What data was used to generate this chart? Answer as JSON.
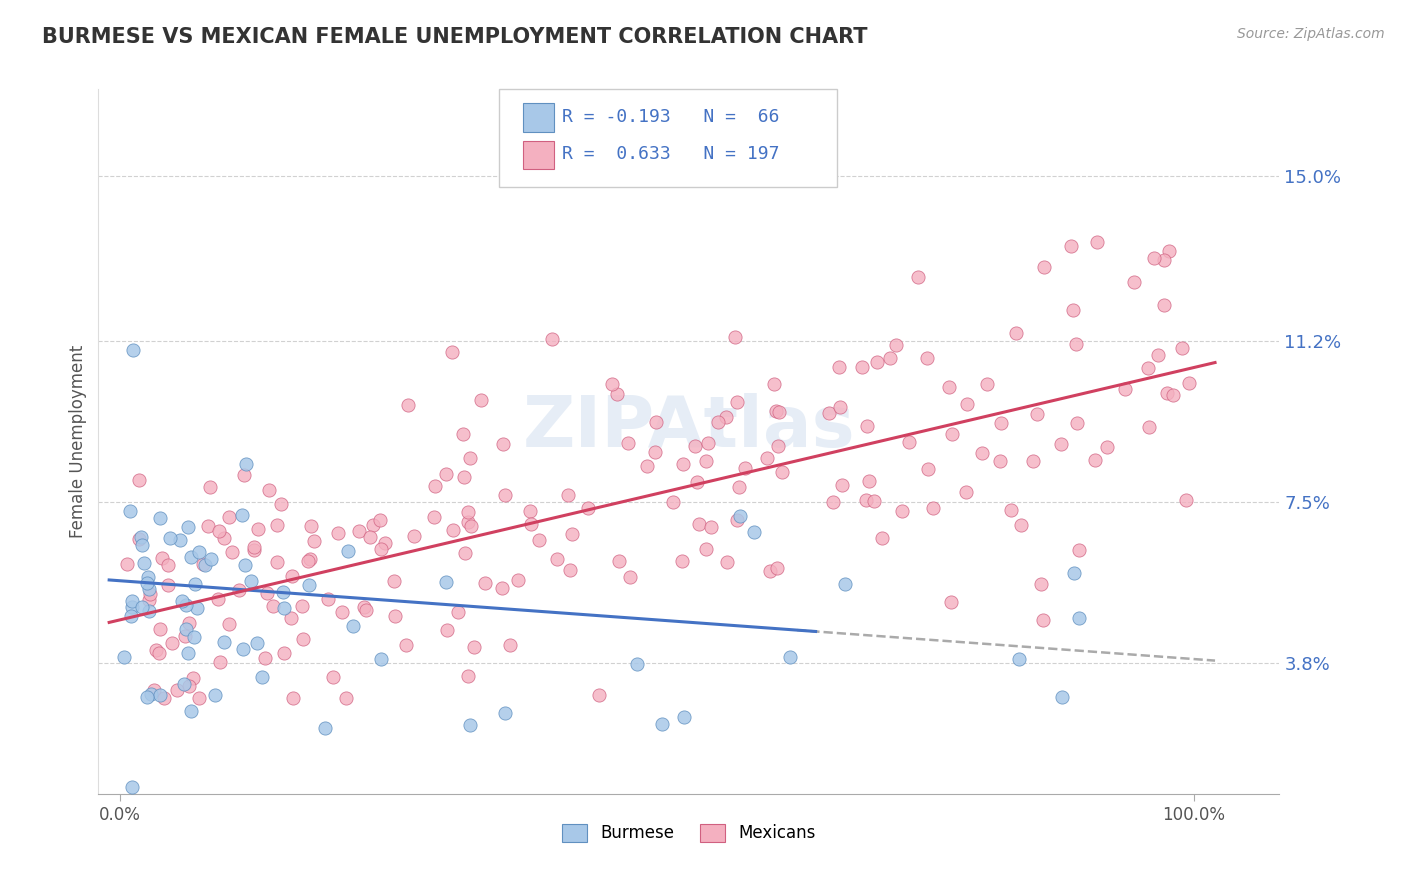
{
  "title": "BURMESE VS MEXICAN FEMALE UNEMPLOYMENT CORRELATION CHART",
  "source": "Source: ZipAtlas.com",
  "ylabel": "Female Unemployment",
  "legend_labels": [
    "Burmese",
    "Mexicans"
  ],
  "r_burmese": -0.193,
  "n_burmese": 66,
  "r_mexicans": 0.633,
  "n_mexicans": 197,
  "color_burmese": "#A8C8E8",
  "color_mexican": "#F4B0C0",
  "edge_burmese": "#6090C0",
  "edge_mexican": "#D06080",
  "trendline_burmese": "#4472C4",
  "trendline_mexican": "#D04060",
  "ytick_labels": [
    "3.8%",
    "7.5%",
    "11.2%",
    "15.0%"
  ],
  "ytick_values": [
    0.038,
    0.075,
    0.112,
    0.15
  ],
  "xtick_labels": [
    "0.0%",
    "100.0%"
  ],
  "background_color": "#FFFFFF",
  "title_color": "#333333",
  "axis_label_color": "#4472C4",
  "grid_color": "#CCCCCC",
  "xlim": [
    -0.02,
    1.08
  ],
  "ylim": [
    0.008,
    0.17
  ],
  "trend_b_intercept": 0.057,
  "trend_b_slope": -0.018,
  "trend_m_intercept": 0.048,
  "trend_m_slope": 0.058,
  "watermark": "ZIPAtlas"
}
